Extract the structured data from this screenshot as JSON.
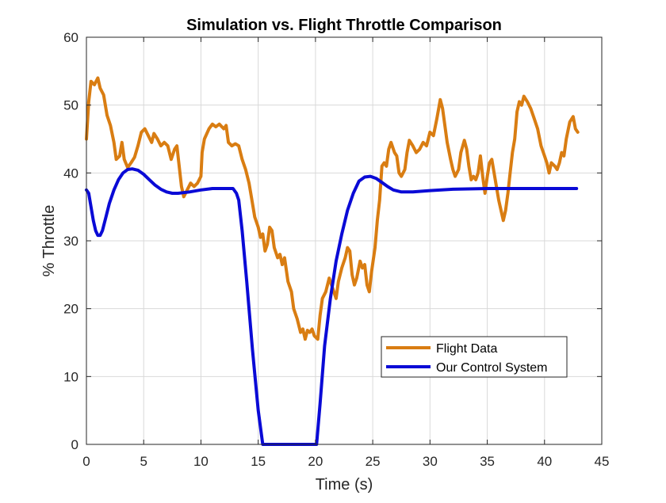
{
  "chart_data": {
    "type": "line",
    "title": "Simulation vs. Flight Throttle Comparison",
    "xlabel": "Time (s)",
    "ylabel": "% Throttle",
    "xlim": [
      0,
      45
    ],
    "ylim": [
      0,
      60
    ],
    "xticks": [
      0,
      5,
      10,
      15,
      20,
      25,
      30,
      35,
      40,
      45
    ],
    "yticks": [
      0,
      10,
      20,
      30,
      40,
      50,
      60
    ],
    "grid": true,
    "legend_position": "lower-right",
    "series": [
      {
        "name": "Flight Data",
        "color": "#d97d12",
        "points": [
          [
            0.0,
            45.0
          ],
          [
            0.2,
            50.5
          ],
          [
            0.4,
            53.5
          ],
          [
            0.7,
            53.0
          ],
          [
            1.0,
            54.0
          ],
          [
            1.2,
            52.5
          ],
          [
            1.5,
            51.5
          ],
          [
            1.8,
            48.5
          ],
          [
            2.1,
            47.0
          ],
          [
            2.4,
            44.5
          ],
          [
            2.6,
            42.0
          ],
          [
            2.9,
            42.5
          ],
          [
            3.1,
            44.5
          ],
          [
            3.3,
            42.0
          ],
          [
            3.6,
            40.8
          ],
          [
            3.9,
            41.5
          ],
          [
            4.2,
            42.3
          ],
          [
            4.5,
            44.0
          ],
          [
            4.8,
            46.0
          ],
          [
            5.1,
            46.5
          ],
          [
            5.4,
            45.5
          ],
          [
            5.7,
            44.5
          ],
          [
            5.9,
            45.8
          ],
          [
            6.2,
            45.0
          ],
          [
            6.5,
            44.0
          ],
          [
            6.8,
            44.5
          ],
          [
            7.1,
            44.0
          ],
          [
            7.4,
            42.0
          ],
          [
            7.7,
            43.5
          ],
          [
            7.9,
            44.0
          ],
          [
            8.1,
            41.0
          ],
          [
            8.3,
            38.0
          ],
          [
            8.5,
            36.5
          ],
          [
            8.8,
            37.5
          ],
          [
            9.1,
            38.5
          ],
          [
            9.4,
            38.0
          ],
          [
            9.7,
            38.5
          ],
          [
            10.0,
            39.5
          ],
          [
            10.1,
            43.0
          ],
          [
            10.3,
            45.0
          ],
          [
            10.7,
            46.5
          ],
          [
            11.0,
            47.2
          ],
          [
            11.3,
            46.8
          ],
          [
            11.6,
            47.2
          ],
          [
            12.0,
            46.5
          ],
          [
            12.2,
            47.0
          ],
          [
            12.4,
            44.5
          ],
          [
            12.7,
            44.0
          ],
          [
            13.0,
            44.3
          ],
          [
            13.3,
            44.0
          ],
          [
            13.6,
            42.0
          ],
          [
            13.9,
            40.5
          ],
          [
            14.2,
            38.5
          ],
          [
            14.4,
            36.5
          ],
          [
            14.7,
            33.5
          ],
          [
            15.0,
            32.0
          ],
          [
            15.2,
            30.5
          ],
          [
            15.4,
            31.0
          ],
          [
            15.6,
            28.5
          ],
          [
            15.8,
            29.5
          ],
          [
            16.0,
            32.0
          ],
          [
            16.2,
            31.5
          ],
          [
            16.4,
            29.0
          ],
          [
            16.7,
            27.5
          ],
          [
            16.9,
            28.0
          ],
          [
            17.1,
            26.5
          ],
          [
            17.3,
            27.5
          ],
          [
            17.6,
            24.0
          ],
          [
            17.9,
            22.5
          ],
          [
            18.1,
            20.0
          ],
          [
            18.4,
            18.5
          ],
          [
            18.7,
            16.5
          ],
          [
            18.9,
            17.0
          ],
          [
            19.1,
            15.5
          ],
          [
            19.3,
            16.8
          ],
          [
            19.5,
            16.5
          ],
          [
            19.7,
            17.0
          ],
          [
            19.9,
            16.0
          ],
          [
            20.2,
            15.5
          ],
          [
            20.4,
            19.0
          ],
          [
            20.6,
            21.5
          ],
          [
            20.9,
            22.5
          ],
          [
            21.2,
            24.5
          ],
          [
            21.5,
            23.0
          ],
          [
            21.8,
            21.5
          ],
          [
            22.0,
            24.0
          ],
          [
            22.3,
            26.0
          ],
          [
            22.6,
            27.5
          ],
          [
            22.8,
            29.0
          ],
          [
            23.0,
            28.5
          ],
          [
            23.2,
            25.0
          ],
          [
            23.4,
            23.5
          ],
          [
            23.6,
            24.5
          ],
          [
            23.9,
            27.0
          ],
          [
            24.1,
            26.0
          ],
          [
            24.3,
            26.5
          ],
          [
            24.5,
            23.5
          ],
          [
            24.7,
            22.5
          ],
          [
            24.9,
            25.5
          ],
          [
            25.2,
            29.0
          ],
          [
            25.4,
            33.0
          ],
          [
            25.6,
            36.0
          ],
          [
            25.8,
            41.0
          ],
          [
            26.0,
            41.5
          ],
          [
            26.2,
            41.0
          ],
          [
            26.4,
            43.5
          ],
          [
            26.6,
            44.5
          ],
          [
            26.9,
            43.0
          ],
          [
            27.1,
            42.5
          ],
          [
            27.3,
            40.0
          ],
          [
            27.5,
            39.5
          ],
          [
            27.8,
            40.5
          ],
          [
            28.0,
            43.0
          ],
          [
            28.2,
            44.8
          ],
          [
            28.5,
            44.0
          ],
          [
            28.8,
            43.0
          ],
          [
            29.1,
            43.5
          ],
          [
            29.4,
            44.5
          ],
          [
            29.7,
            44.0
          ],
          [
            30.0,
            46.0
          ],
          [
            30.3,
            45.5
          ],
          [
            30.6,
            48.0
          ],
          [
            30.9,
            50.8
          ],
          [
            31.1,
            49.5
          ],
          [
            31.3,
            47.0
          ],
          [
            31.5,
            44.5
          ],
          [
            31.8,
            42.0
          ],
          [
            32.0,
            40.5
          ],
          [
            32.2,
            39.5
          ],
          [
            32.5,
            40.5
          ],
          [
            32.7,
            43.0
          ],
          [
            33.0,
            44.8
          ],
          [
            33.2,
            43.5
          ],
          [
            33.4,
            41.0
          ],
          [
            33.6,
            39.0
          ],
          [
            33.8,
            39.5
          ],
          [
            34.0,
            39.0
          ],
          [
            34.2,
            40.0
          ],
          [
            34.4,
            42.5
          ],
          [
            34.6,
            39.5
          ],
          [
            34.8,
            37.0
          ],
          [
            35.0,
            39.5
          ],
          [
            35.2,
            41.5
          ],
          [
            35.4,
            42.0
          ],
          [
            35.6,
            40.0
          ],
          [
            35.8,
            38.0
          ],
          [
            36.0,
            36.0
          ],
          [
            36.2,
            34.5
          ],
          [
            36.4,
            33.0
          ],
          [
            36.6,
            34.5
          ],
          [
            36.8,
            37.0
          ],
          [
            37.0,
            40.0
          ],
          [
            37.2,
            43.0
          ],
          [
            37.4,
            45.0
          ],
          [
            37.6,
            49.0
          ],
          [
            37.8,
            50.5
          ],
          [
            38.0,
            50.0
          ],
          [
            38.2,
            51.3
          ],
          [
            38.5,
            50.5
          ],
          [
            38.8,
            49.5
          ],
          [
            39.1,
            48.0
          ],
          [
            39.4,
            46.5
          ],
          [
            39.7,
            44.0
          ],
          [
            40.0,
            42.5
          ],
          [
            40.2,
            41.5
          ],
          [
            40.4,
            40.0
          ],
          [
            40.6,
            41.5
          ],
          [
            40.9,
            41.0
          ],
          [
            41.1,
            40.5
          ],
          [
            41.3,
            41.5
          ],
          [
            41.5,
            43.0
          ],
          [
            41.7,
            42.5
          ],
          [
            41.9,
            45.0
          ],
          [
            42.2,
            47.5
          ],
          [
            42.5,
            48.3
          ],
          [
            42.7,
            46.5
          ],
          [
            42.9,
            46.0
          ]
        ]
      },
      {
        "name": "Our Control System",
        "color": "#0a0ad6",
        "points": [
          [
            0.0,
            37.5
          ],
          [
            0.2,
            37.0
          ],
          [
            0.4,
            35.0
          ],
          [
            0.6,
            33.0
          ],
          [
            0.8,
            31.5
          ],
          [
            1.0,
            30.8
          ],
          [
            1.2,
            30.8
          ],
          [
            1.4,
            31.5
          ],
          [
            1.7,
            33.5
          ],
          [
            2.0,
            35.5
          ],
          [
            2.4,
            37.5
          ],
          [
            2.8,
            39.0
          ],
          [
            3.2,
            40.0
          ],
          [
            3.6,
            40.5
          ],
          [
            4.0,
            40.6
          ],
          [
            4.5,
            40.4
          ],
          [
            5.0,
            39.8
          ],
          [
            5.5,
            39.0
          ],
          [
            6.0,
            38.2
          ],
          [
            6.5,
            37.6
          ],
          [
            7.0,
            37.2
          ],
          [
            7.5,
            37.0
          ],
          [
            8.0,
            37.0
          ],
          [
            9.0,
            37.2
          ],
          [
            10.0,
            37.5
          ],
          [
            11.0,
            37.7
          ],
          [
            12.0,
            37.7
          ],
          [
            12.8,
            37.7
          ],
          [
            13.1,
            37.0
          ],
          [
            13.3,
            36.0
          ],
          [
            13.6,
            31.5
          ],
          [
            14.0,
            24.0
          ],
          [
            14.5,
            14.0
          ],
          [
            15.0,
            5.0
          ],
          [
            15.4,
            0.0
          ],
          [
            20.1,
            0.0
          ],
          [
            20.4,
            6.0
          ],
          [
            20.8,
            14.5
          ],
          [
            21.3,
            21.5
          ],
          [
            21.8,
            27.0
          ],
          [
            22.3,
            31.0
          ],
          [
            22.8,
            34.5
          ],
          [
            23.3,
            37.0
          ],
          [
            23.8,
            38.8
          ],
          [
            24.3,
            39.4
          ],
          [
            24.8,
            39.5
          ],
          [
            25.3,
            39.2
          ],
          [
            25.8,
            38.6
          ],
          [
            26.3,
            38.0
          ],
          [
            26.8,
            37.5
          ],
          [
            27.5,
            37.2
          ],
          [
            28.5,
            37.2
          ],
          [
            30.0,
            37.4
          ],
          [
            32.0,
            37.6
          ],
          [
            35.0,
            37.7
          ],
          [
            40.0,
            37.7
          ],
          [
            42.8,
            37.7
          ]
        ]
      }
    ]
  }
}
